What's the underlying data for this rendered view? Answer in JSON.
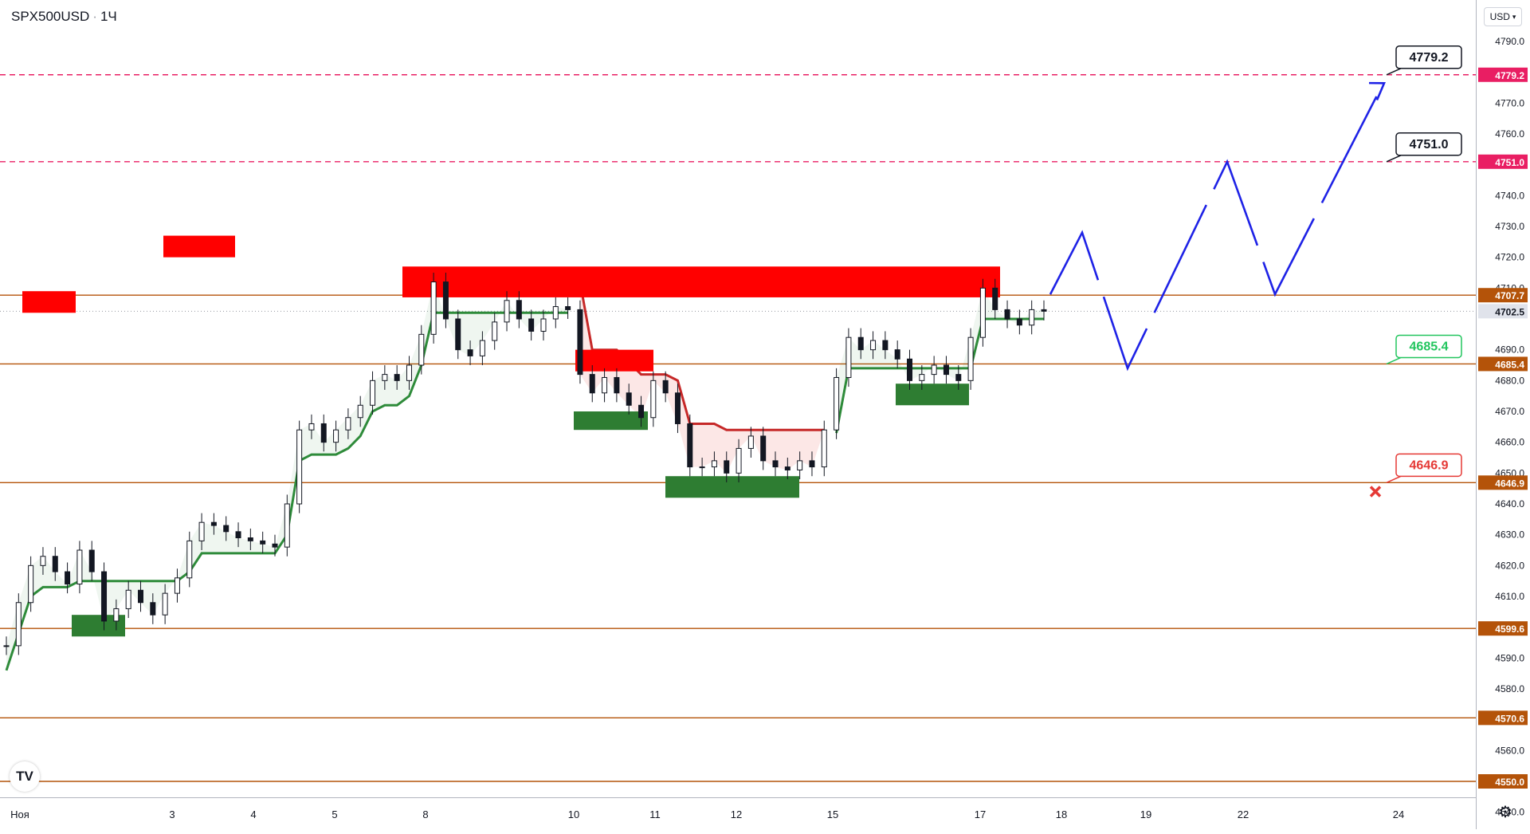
{
  "header": {
    "symbol": "SPX500USD",
    "interval": "1Ч"
  },
  "currency_selector": {
    "label": "USD"
  },
  "icons": {
    "settings": "gear-icon",
    "logo": "tradingview-logo"
  },
  "logo_text": "TV",
  "price_scale": {
    "ticks": [
      "4790.0",
      "4770.0",
      "4760.0",
      "4740.0",
      "4730.0",
      "4720.0",
      "4710.0",
      "4690.0",
      "4680.0",
      "4670.0",
      "4660.0",
      "4650.0",
      "4640.0",
      "4630.0",
      "4620.0",
      "4610.0",
      "4590.0",
      "4580.0",
      "4560.0",
      "4540.0"
    ],
    "labels": [
      {
        "value": 4779.2,
        "text": "4779.2",
        "color": "#e91e63",
        "text_color": "#ffffff"
      },
      {
        "value": 4751.0,
        "text": "4751.0",
        "color": "#e91e63",
        "text_color": "#ffffff"
      },
      {
        "value": 4707.7,
        "text": "4707.7",
        "color": "#b45309",
        "text_color": "#ffffff"
      },
      {
        "value": 4702.5,
        "text": "4702.5",
        "color": "#e0e3eb",
        "text_color": "#131722"
      },
      {
        "value": 4685.4,
        "text": "4685.4",
        "color": "#b45309",
        "text_color": "#ffffff"
      },
      {
        "value": 4646.9,
        "text": "4646.9",
        "color": "#b45309",
        "text_color": "#ffffff"
      },
      {
        "value": 4599.6,
        "text": "4599.6",
        "color": "#b45309",
        "text_color": "#ffffff"
      },
      {
        "value": 4570.6,
        "text": "4570.6",
        "color": "#b45309",
        "text_color": "#ffffff"
      },
      {
        "value": 4550.0,
        "text": "4550.0",
        "color": "#b45309",
        "text_color": "#ffffff"
      }
    ]
  },
  "time_scale": {
    "labels": [
      "Ноя",
      "3",
      "4",
      "5",
      "8",
      "10",
      "11",
      "12",
      "15",
      "17",
      "18",
      "19",
      "22",
      "24"
    ]
  },
  "chart_data": {
    "type": "candlestick",
    "symbol": "SPX500USD",
    "interval": "1H",
    "y_range": [
      4536,
      4796
    ],
    "close_approx": [
      4594,
      4608,
      4620,
      4623,
      4618,
      4614,
      4625,
      4618,
      4602,
      4606,
      4612,
      4608,
      4604,
      4611,
      4616,
      4628,
      4634,
      4633,
      4631,
      4629,
      4628,
      4627,
      4626,
      4640,
      4664,
      4666,
      4660,
      4664,
      4668,
      4672,
      4680,
      4682,
      4680,
      4685,
      4695,
      4712,
      4700,
      4690,
      4688,
      4693,
      4699,
      4706,
      4700,
      4696,
      4700,
      4704,
      4703,
      4682,
      4676,
      4681,
      4676,
      4672,
      4668,
      4680,
      4676,
      4666,
      4652,
      4652,
      4654,
      4650,
      4658,
      4662,
      4654,
      4652,
      4651,
      4654,
      4652,
      4664,
      4681,
      4694,
      4690,
      4693,
      4690,
      4687,
      4680,
      4682,
      4685,
      4682,
      4680,
      4694,
      4710,
      4703,
      4700,
      4698,
      4703,
      4702.5
    ],
    "horizontal_levels": [
      {
        "value": 4779.2,
        "style": "dashed",
        "color": "#e91e63"
      },
      {
        "value": 4751.0,
        "style": "dashed",
        "color": "#e91e63"
      },
      {
        "value": 4707.7,
        "style": "solid",
        "color": "#b45309"
      },
      {
        "value": 4685.4,
        "style": "solid",
        "color": "#b45309"
      },
      {
        "value": 4646.9,
        "style": "solid",
        "color": "#b45309"
      },
      {
        "value": 4599.6,
        "style": "solid",
        "color": "#b45309"
      },
      {
        "value": 4570.6,
        "style": "solid",
        "color": "#b45309"
      },
      {
        "value": 4550.0,
        "style": "solid",
        "color": "#b45309"
      }
    ],
    "supply_zones": [
      {
        "top": 4709,
        "bottom": 4702,
        "color": "#ff0000"
      },
      {
        "top": 4727,
        "bottom": 4720,
        "color": "#ff0000"
      },
      {
        "top": 4690,
        "bottom": 4683,
        "color": "#ff0000"
      },
      {
        "top": 4717,
        "bottom": 4707,
        "color": "#ff0000"
      }
    ],
    "demand_zones": [
      {
        "top": 4604,
        "bottom": 4597,
        "color": "#2e7d32"
      },
      {
        "top": 4670,
        "bottom": 4664,
        "color": "#2e7d32"
      },
      {
        "top": 4649,
        "bottom": 4642,
        "color": "#2e7d32"
      },
      {
        "top": 4679,
        "bottom": 4672,
        "color": "#2e7d32"
      }
    ],
    "callouts": [
      {
        "text": "4779.2",
        "value": 4779.2,
        "color": "#131722",
        "bg": "#ffffff"
      },
      {
        "text": "4751.0",
        "value": 4751.0,
        "color": "#131722",
        "bg": "#ffffff"
      },
      {
        "text": "4685.4",
        "value": 4685.4,
        "color": "#22c55e",
        "bg": "#ffffff"
      },
      {
        "text": "4646.9",
        "value": 4646.9,
        "color": "#e53935",
        "bg": "#ffffff"
      }
    ],
    "projection": {
      "color": "#1e22e6",
      "path": [
        4708,
        4728,
        4684,
        4751,
        4708,
        4776
      ]
    },
    "colors": {
      "up": "#131722",
      "down": "#131722",
      "supertrend_up": "#2e8b3a",
      "supertrend_down": "#c62828",
      "fill_up": "rgba(46,139,58,0.08)",
      "fill_down": "rgba(229,57,53,0.12)"
    }
  }
}
